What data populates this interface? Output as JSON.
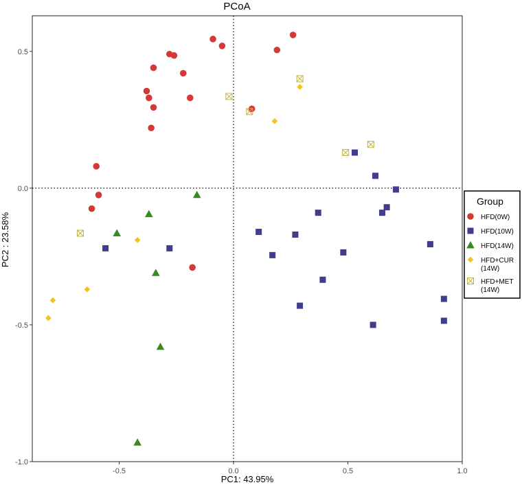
{
  "chart_data": {
    "type": "scatter",
    "title": "PCoA",
    "xlabel": "PC1: 43.95%",
    "ylabel": "PC2 :  23.58%",
    "xlim": [
      -0.88,
      1.0
    ],
    "ylim": [
      -1.0,
      0.63
    ],
    "x_ticks": [
      -0.5,
      0.0,
      0.5,
      1.0
    ],
    "x_tick_labels": [
      "-0.5",
      "0.0",
      "0.5",
      "1.0"
    ],
    "y_ticks": [
      -1.0,
      -0.5,
      0.0,
      0.5
    ],
    "y_tick_labels": [
      "-1.0",
      "-0.5",
      "0.0",
      "0.5"
    ],
    "reference_lines": {
      "x": 0,
      "y": 0,
      "style": "dotted"
    },
    "legend": {
      "title": "Group",
      "placement": "right"
    },
    "series": [
      {
        "name": "HFD(0W)",
        "label_lines": [
          "HFD(0W)"
        ],
        "marker": "circle",
        "color": "#d13a36",
        "points": [
          [
            -0.09,
            0.545
          ],
          [
            -0.05,
            0.52
          ],
          [
            0.26,
            0.56
          ],
          [
            0.19,
            0.505
          ],
          [
            -0.28,
            0.49
          ],
          [
            -0.26,
            0.485
          ],
          [
            -0.35,
            0.44
          ],
          [
            -0.22,
            0.42
          ],
          [
            -0.38,
            0.355
          ],
          [
            -0.37,
            0.33
          ],
          [
            -0.19,
            0.33
          ],
          [
            -0.35,
            0.295
          ],
          [
            -0.36,
            0.22
          ],
          [
            0.08,
            0.29
          ],
          [
            -0.6,
            0.08
          ],
          [
            -0.59,
            -0.025
          ],
          [
            -0.62,
            -0.075
          ],
          [
            -0.18,
            -0.29
          ]
        ]
      },
      {
        "name": "HFD(10W)",
        "label_lines": [
          "HFD(10W)"
        ],
        "marker": "square",
        "color": "#403c8e",
        "points": [
          [
            0.53,
            0.13
          ],
          [
            0.62,
            0.045
          ],
          [
            0.71,
            -0.005
          ],
          [
            0.67,
            -0.07
          ],
          [
            0.65,
            -0.09
          ],
          [
            0.37,
            -0.09
          ],
          [
            0.11,
            -0.16
          ],
          [
            0.27,
            -0.17
          ],
          [
            0.17,
            -0.245
          ],
          [
            0.48,
            -0.235
          ],
          [
            0.86,
            -0.205
          ],
          [
            0.39,
            -0.335
          ],
          [
            0.29,
            -0.43
          ],
          [
            0.92,
            -0.405
          ],
          [
            0.61,
            -0.5
          ],
          [
            0.92,
            -0.485
          ],
          [
            -0.56,
            -0.22
          ],
          [
            -0.28,
            -0.22
          ]
        ]
      },
      {
        "name": "HFD(14W)",
        "label_lines": [
          "HFD(14W)"
        ],
        "marker": "triangle",
        "color": "#3b8a1f",
        "points": [
          [
            -0.16,
            -0.025
          ],
          [
            -0.37,
            -0.095
          ],
          [
            -0.51,
            -0.165
          ],
          [
            -0.34,
            -0.31
          ],
          [
            -0.32,
            -0.58
          ],
          [
            -0.42,
            -0.93
          ]
        ]
      },
      {
        "name": "HFD+CUR (14W)",
        "label_lines": [
          "HFD+CUR",
          "(14W)"
        ],
        "marker": "diamond",
        "color": "#f5c21b",
        "points": [
          [
            0.29,
            0.37
          ],
          [
            0.18,
            0.245
          ],
          [
            -0.42,
            -0.19
          ],
          [
            -0.64,
            -0.37
          ],
          [
            -0.79,
            -0.41
          ],
          [
            -0.81,
            -0.475
          ]
        ]
      },
      {
        "name": "HFD+MET (14W)",
        "label_lines": [
          "HFD+MET",
          "(14W)"
        ],
        "marker": "boxx",
        "color": "#c4b340",
        "points": [
          [
            0.29,
            0.4
          ],
          [
            -0.02,
            0.335
          ],
          [
            0.07,
            0.28
          ],
          [
            0.49,
            0.13
          ],
          [
            0.6,
            0.16
          ],
          [
            -0.67,
            -0.165
          ]
        ]
      }
    ]
  }
}
